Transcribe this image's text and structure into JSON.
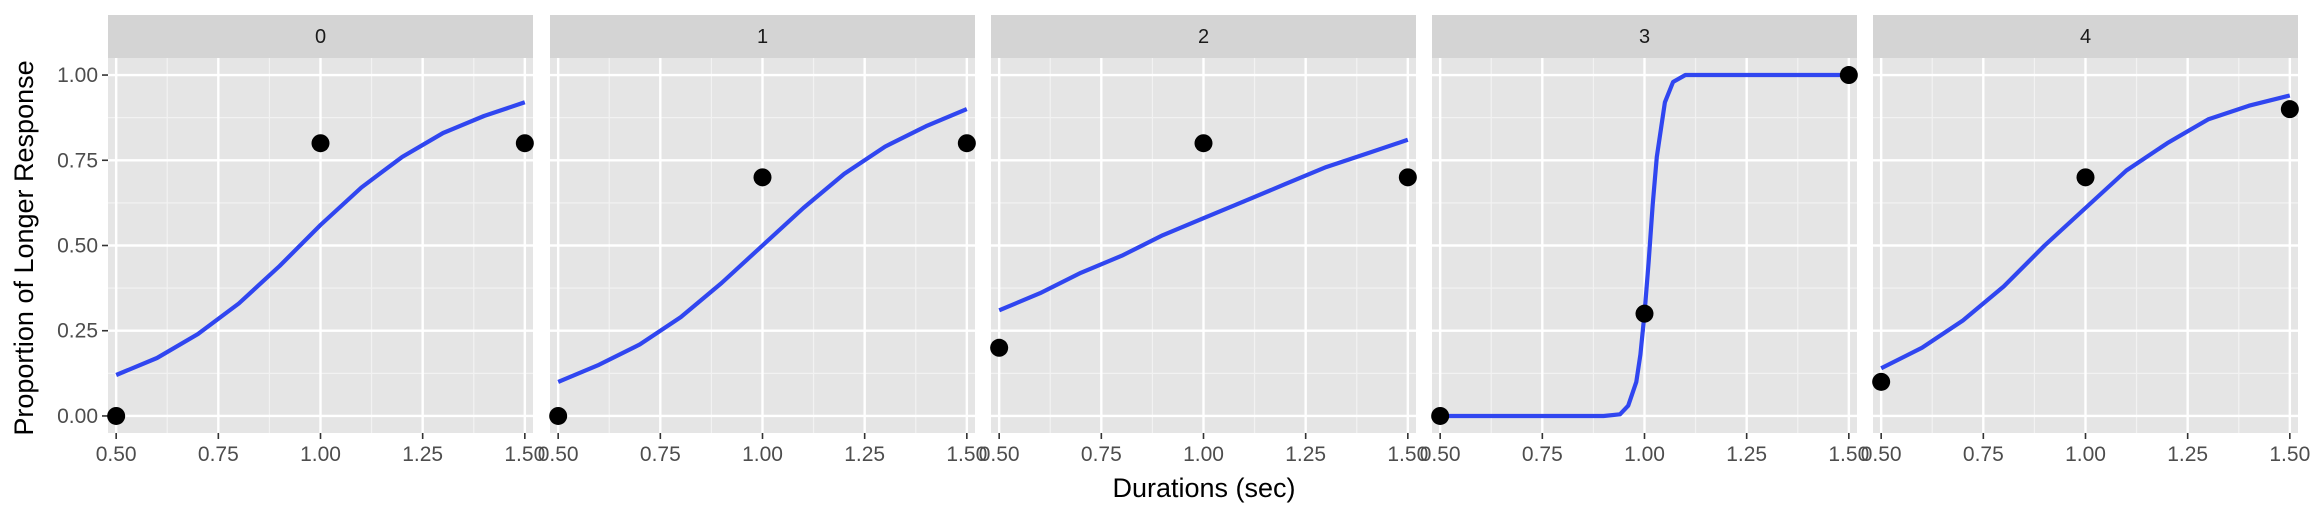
{
  "chart_data": {
    "type": "scatter",
    "xlabel": "Durations (sec)",
    "ylabel": "Proportion of Longer Response",
    "xlim": [
      0.48,
      1.52
    ],
    "ylim": [
      -0.05,
      1.05
    ],
    "x_ticks": [
      "0.50",
      "0.75",
      "1.00",
      "1.25",
      "1.50"
    ],
    "y_ticks": [
      "0.00",
      "0.25",
      "0.50",
      "0.75",
      "1.00"
    ],
    "grid": true,
    "point_color": "#000000",
    "line_color": "#3046F0",
    "panel_background": "#E5E5E5",
    "strip_background": "#D4D4D4",
    "panels": [
      {
        "label": "0",
        "points": [
          [
            0.5,
            0.0
          ],
          [
            1.0,
            0.8
          ],
          [
            1.5,
            0.8
          ]
        ],
        "curve": [
          [
            0.5,
            0.12
          ],
          [
            0.6,
            0.17
          ],
          [
            0.7,
            0.24
          ],
          [
            0.8,
            0.33
          ],
          [
            0.9,
            0.44
          ],
          [
            1.0,
            0.56
          ],
          [
            1.1,
            0.67
          ],
          [
            1.2,
            0.76
          ],
          [
            1.3,
            0.83
          ],
          [
            1.4,
            0.88
          ],
          [
            1.5,
            0.92
          ]
        ]
      },
      {
        "label": "1",
        "points": [
          [
            0.5,
            0.0
          ],
          [
            1.0,
            0.7
          ],
          [
            1.5,
            0.8
          ]
        ],
        "curve": [
          [
            0.5,
            0.1
          ],
          [
            0.6,
            0.15
          ],
          [
            0.7,
            0.21
          ],
          [
            0.8,
            0.29
          ],
          [
            0.9,
            0.39
          ],
          [
            1.0,
            0.5
          ],
          [
            1.1,
            0.61
          ],
          [
            1.2,
            0.71
          ],
          [
            1.3,
            0.79
          ],
          [
            1.4,
            0.85
          ],
          [
            1.5,
            0.9
          ]
        ]
      },
      {
        "label": "2",
        "points": [
          [
            0.5,
            0.2
          ],
          [
            1.0,
            0.8
          ],
          [
            1.5,
            0.7
          ]
        ],
        "curve": [
          [
            0.5,
            0.31
          ],
          [
            0.6,
            0.36
          ],
          [
            0.7,
            0.42
          ],
          [
            0.8,
            0.47
          ],
          [
            0.9,
            0.53
          ],
          [
            1.0,
            0.58
          ],
          [
            1.1,
            0.63
          ],
          [
            1.2,
            0.68
          ],
          [
            1.3,
            0.73
          ],
          [
            1.4,
            0.77
          ],
          [
            1.5,
            0.81
          ]
        ]
      },
      {
        "label": "3",
        "points": [
          [
            0.5,
            0.0
          ],
          [
            1.0,
            0.3
          ],
          [
            1.5,
            1.0
          ]
        ],
        "curve": [
          [
            0.5,
            0.0
          ],
          [
            0.9,
            0.0
          ],
          [
            0.94,
            0.005
          ],
          [
            0.96,
            0.03
          ],
          [
            0.98,
            0.1
          ],
          [
            0.99,
            0.18
          ],
          [
            1.0,
            0.3
          ],
          [
            1.01,
            0.45
          ],
          [
            1.02,
            0.62
          ],
          [
            1.03,
            0.76
          ],
          [
            1.05,
            0.92
          ],
          [
            1.07,
            0.98
          ],
          [
            1.1,
            1.0
          ],
          [
            1.5,
            1.0
          ]
        ]
      },
      {
        "label": "4",
        "points": [
          [
            0.5,
            0.1
          ],
          [
            1.0,
            0.7
          ],
          [
            1.5,
            0.9
          ]
        ],
        "curve": [
          [
            0.5,
            0.14
          ],
          [
            0.6,
            0.2
          ],
          [
            0.7,
            0.28
          ],
          [
            0.8,
            0.38
          ],
          [
            0.9,
            0.5
          ],
          [
            1.0,
            0.61
          ],
          [
            1.1,
            0.72
          ],
          [
            1.2,
            0.8
          ],
          [
            1.3,
            0.87
          ],
          [
            1.4,
            0.91
          ],
          [
            1.5,
            0.94
          ]
        ]
      }
    ]
  }
}
